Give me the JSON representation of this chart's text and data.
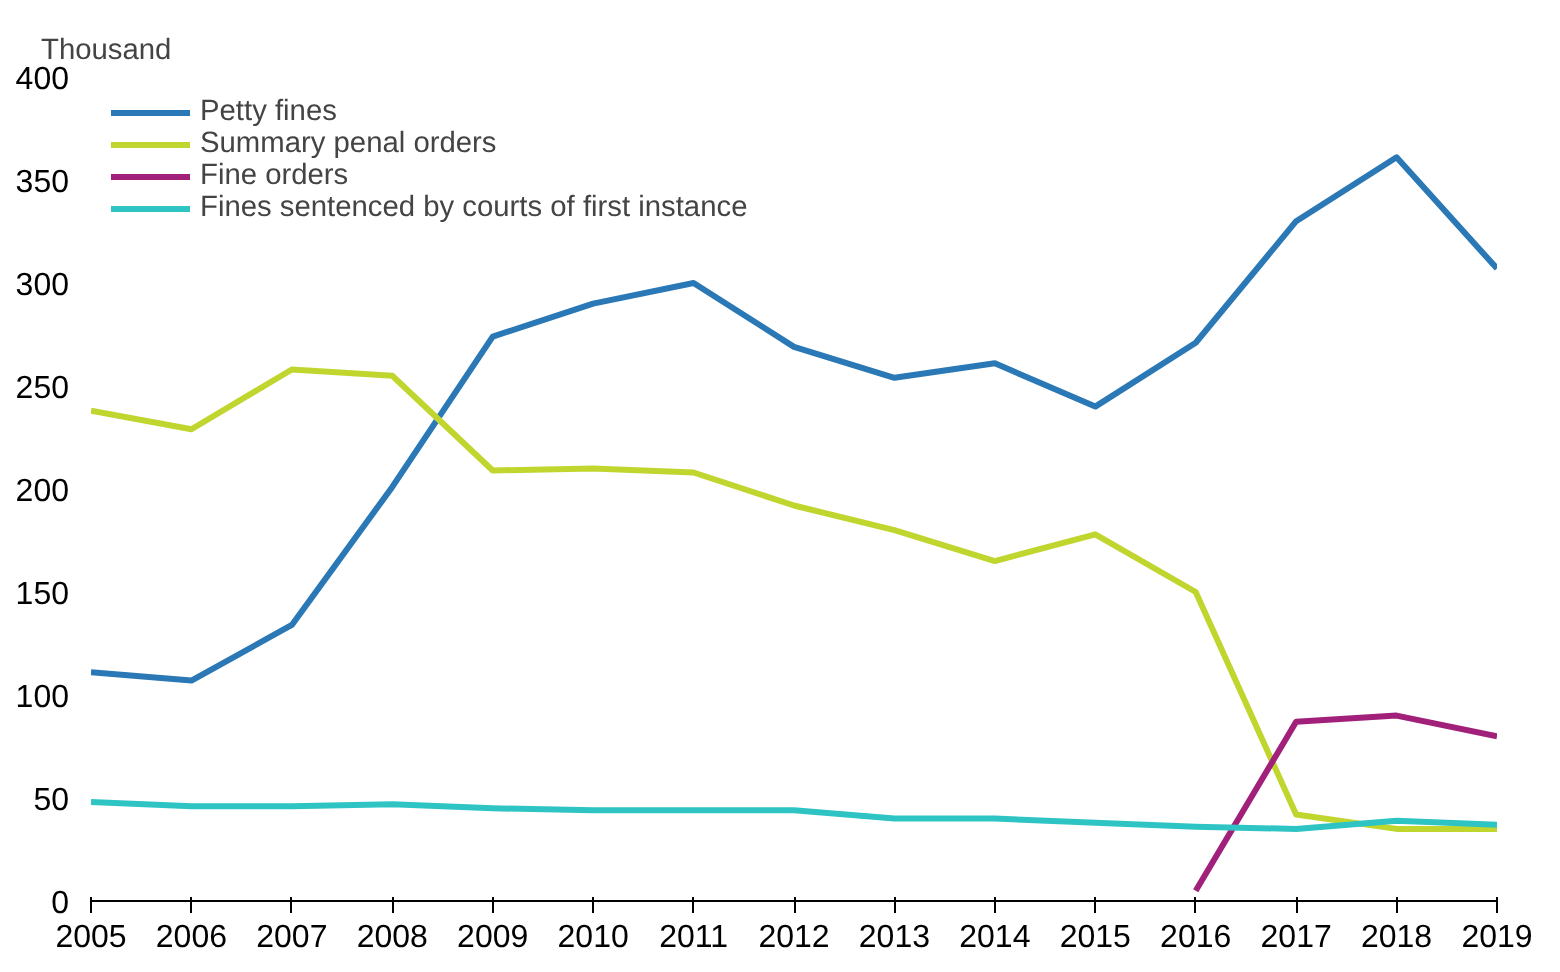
{
  "chart_data": {
    "type": "line",
    "ylabel": "Thousand",
    "x": [
      2005,
      2006,
      2007,
      2008,
      2009,
      2010,
      2011,
      2012,
      2013,
      2014,
      2015,
      2016,
      2017,
      2018,
      2019
    ],
    "xlim": [
      2005,
      2019
    ],
    "xticks": [
      2005,
      2006,
      2007,
      2008,
      2009,
      2010,
      2011,
      2012,
      2013,
      2014,
      2015,
      2016,
      2017,
      2018,
      2019
    ],
    "ylim": [
      0,
      400
    ],
    "yticks": [
      0,
      50,
      100,
      150,
      200,
      250,
      300,
      350,
      400
    ],
    "grid": false,
    "legend": "top left",
    "marker": "none",
    "line_style": "solid",
    "series": [
      {
        "name": "Petty fines",
        "color": "#2a78b5",
        "values": [
          111,
          107,
          134,
          201,
          274,
          290,
          300,
          269,
          254,
          261,
          240,
          271,
          330,
          361,
          307
        ]
      },
      {
        "name": "Summary penal orders",
        "color": "#c0d62f",
        "values": [
          238,
          229,
          258,
          255,
          209,
          210,
          208,
          192,
          180,
          165,
          178,
          150,
          42,
          35,
          35
        ]
      },
      {
        "name": "Fine orders",
        "color": "#a0207a",
        "values": [
          null,
          null,
          null,
          null,
          null,
          null,
          null,
          null,
          null,
          null,
          null,
          5,
          87,
          90,
          80
        ]
      },
      {
        "name": "Fines sentenced by courts of first instance",
        "color": "#2ec4c4",
        "values": [
          48,
          46,
          46,
          47,
          45,
          44,
          44,
          44,
          40,
          40,
          38,
          36,
          35,
          39,
          37
        ]
      }
    ]
  }
}
